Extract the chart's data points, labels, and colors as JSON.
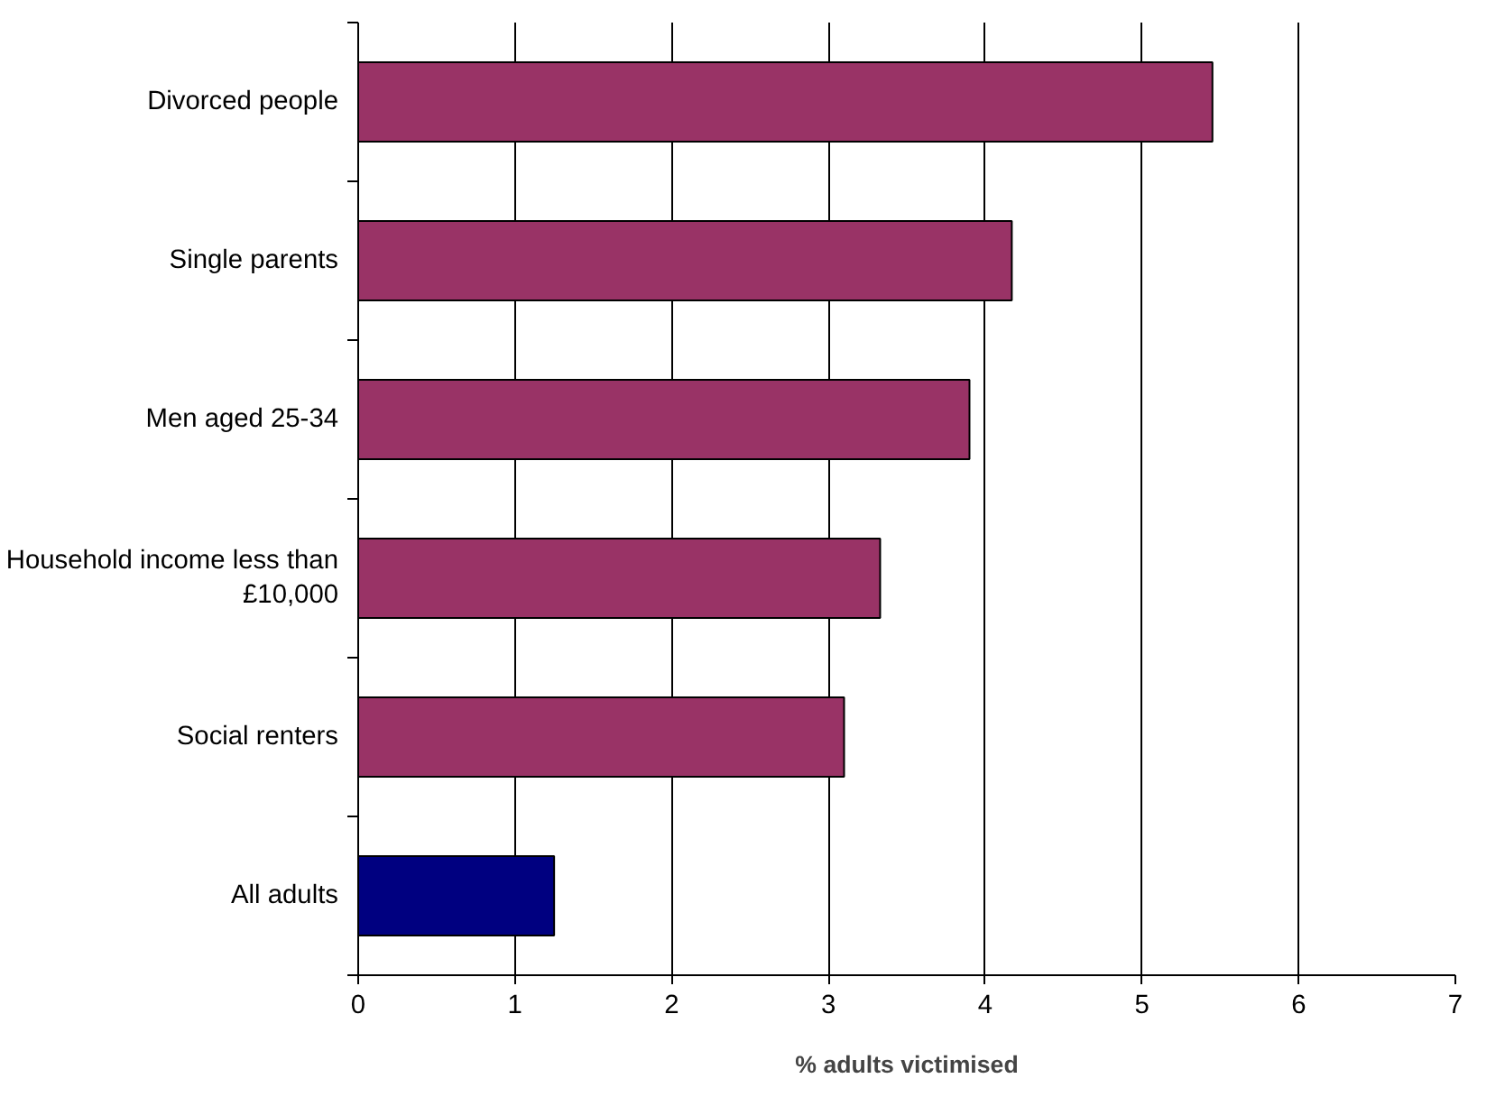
{
  "chart_data": {
    "type": "bar",
    "orientation": "horizontal",
    "xlabel": "% adults victimised",
    "categories": [
      "Divorced people",
      "Single parents",
      "Men aged 25-34",
      "Household income less than £10,000",
      "Social renters",
      "All adults"
    ],
    "values": [
      5.45,
      4.17,
      3.9,
      3.33,
      3.1,
      1.25
    ],
    "colors": [
      "#993366",
      "#993366",
      "#993366",
      "#993366",
      "#993366",
      "#000080"
    ],
    "xlim": [
      0,
      7
    ],
    "xticks": [
      0,
      1,
      2,
      3,
      4,
      5,
      6,
      7
    ],
    "grid": "x"
  }
}
